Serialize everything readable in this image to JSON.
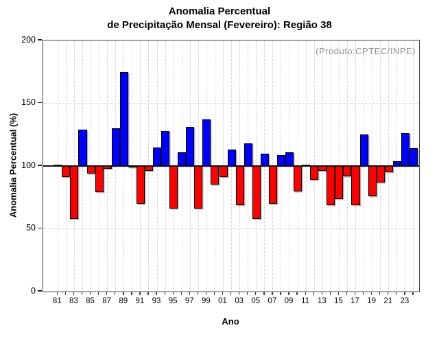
{
  "title": {
    "line1": "Anomalia Percentual",
    "line2": "de Precipitação Mensal (Fevereiro): Região 38"
  },
  "annotation": "(Produto:CPTEC/INPE)",
  "chart_data": {
    "type": "bar",
    "title": "Anomalia Percentual de Precipitação Mensal (Fevereiro): Região 38",
    "xlabel": "Ano",
    "ylabel": "Anomalia Percentual (%)",
    "ylim": [
      0,
      200
    ],
    "y_ticks": [
      0,
      50,
      100,
      150,
      200
    ],
    "baseline": 100,
    "legend_position": "none",
    "grid": {
      "horizontal_dotted_at": [
        50,
        100,
        150
      ],
      "vertical_dotted": "every year",
      "solid_line_at": 100
    },
    "colors": {
      "above_baseline": "#0000ff",
      "below_baseline": "#ff0000",
      "baseline_bar": "#222222",
      "annotation_text": "#8f8f8f",
      "gridline": "#cccccc",
      "frame": "#3c3c3c"
    },
    "x_tick_labels": [
      "81",
      "83",
      "85",
      "87",
      "89",
      "91",
      "93",
      "95",
      "97",
      "99",
      "01",
      "03",
      "05",
      "07",
      "09",
      "11",
      "13",
      "15",
      "17",
      "19",
      "21",
      "23"
    ],
    "years": [
      1981,
      1982,
      1983,
      1984,
      1985,
      1986,
      1987,
      1988,
      1989,
      1990,
      1991,
      1992,
      1993,
      1994,
      1995,
      1996,
      1997,
      1998,
      1999,
      2000,
      2001,
      2002,
      2003,
      2004,
      2005,
      2006,
      2007,
      2008,
      2009,
      2010,
      2011,
      2012,
      2013,
      2014,
      2015,
      2016,
      2017,
      2018,
      2019,
      2020,
      2021,
      2022,
      2023,
      2024
    ],
    "values": [
      100,
      91,
      58,
      129,
      94,
      79,
      98,
      130,
      175,
      99,
      70,
      96,
      115,
      128,
      66,
      111,
      131,
      66,
      137,
      85,
      91,
      113,
      69,
      118,
      58,
      110,
      70,
      109,
      111,
      80,
      100,
      89,
      96,
      69,
      74,
      92,
      69,
      125,
      76,
      87,
      95,
      104,
      126,
      114
    ]
  }
}
